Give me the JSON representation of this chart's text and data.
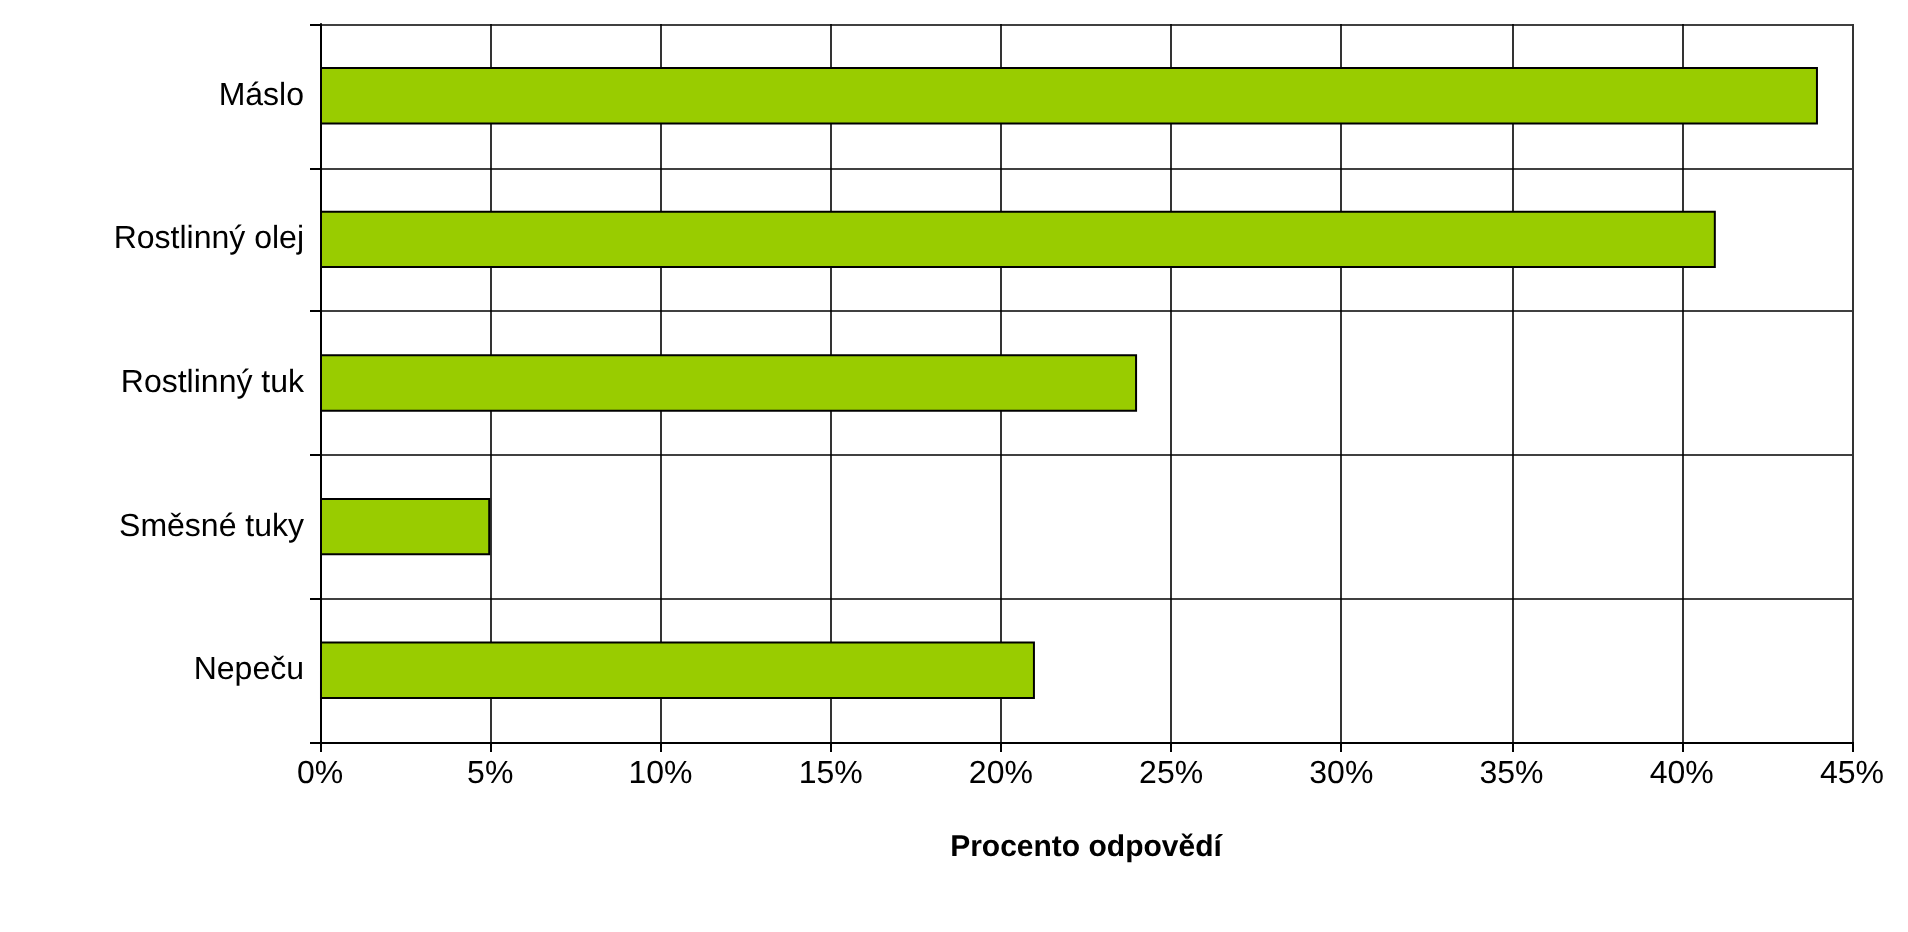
{
  "chart_data": {
    "type": "bar",
    "orientation": "horizontal",
    "xlabel": "Procento odpovědí",
    "categories": [
      "Máslo",
      "Rostlinný olej",
      "Rostlinný tuk",
      "Směsné tuky",
      "Nepeču"
    ],
    "values": [
      44,
      41,
      24,
      5,
      21
    ],
    "color": "#99cc00",
    "xlim": [
      0,
      45
    ],
    "xticks": [
      {
        "value": 0,
        "label": "0%"
      },
      {
        "value": 5,
        "label": "5%"
      },
      {
        "value": 10,
        "label": "10%"
      },
      {
        "value": 15,
        "label": "15%"
      },
      {
        "value": 20,
        "label": "20%"
      },
      {
        "value": 25,
        "label": "25%"
      },
      {
        "value": 30,
        "label": "30%"
      },
      {
        "value": 35,
        "label": "35%"
      },
      {
        "value": 40,
        "label": "40%"
      },
      {
        "value": 45,
        "label": "45%"
      }
    ],
    "grid": true
  }
}
